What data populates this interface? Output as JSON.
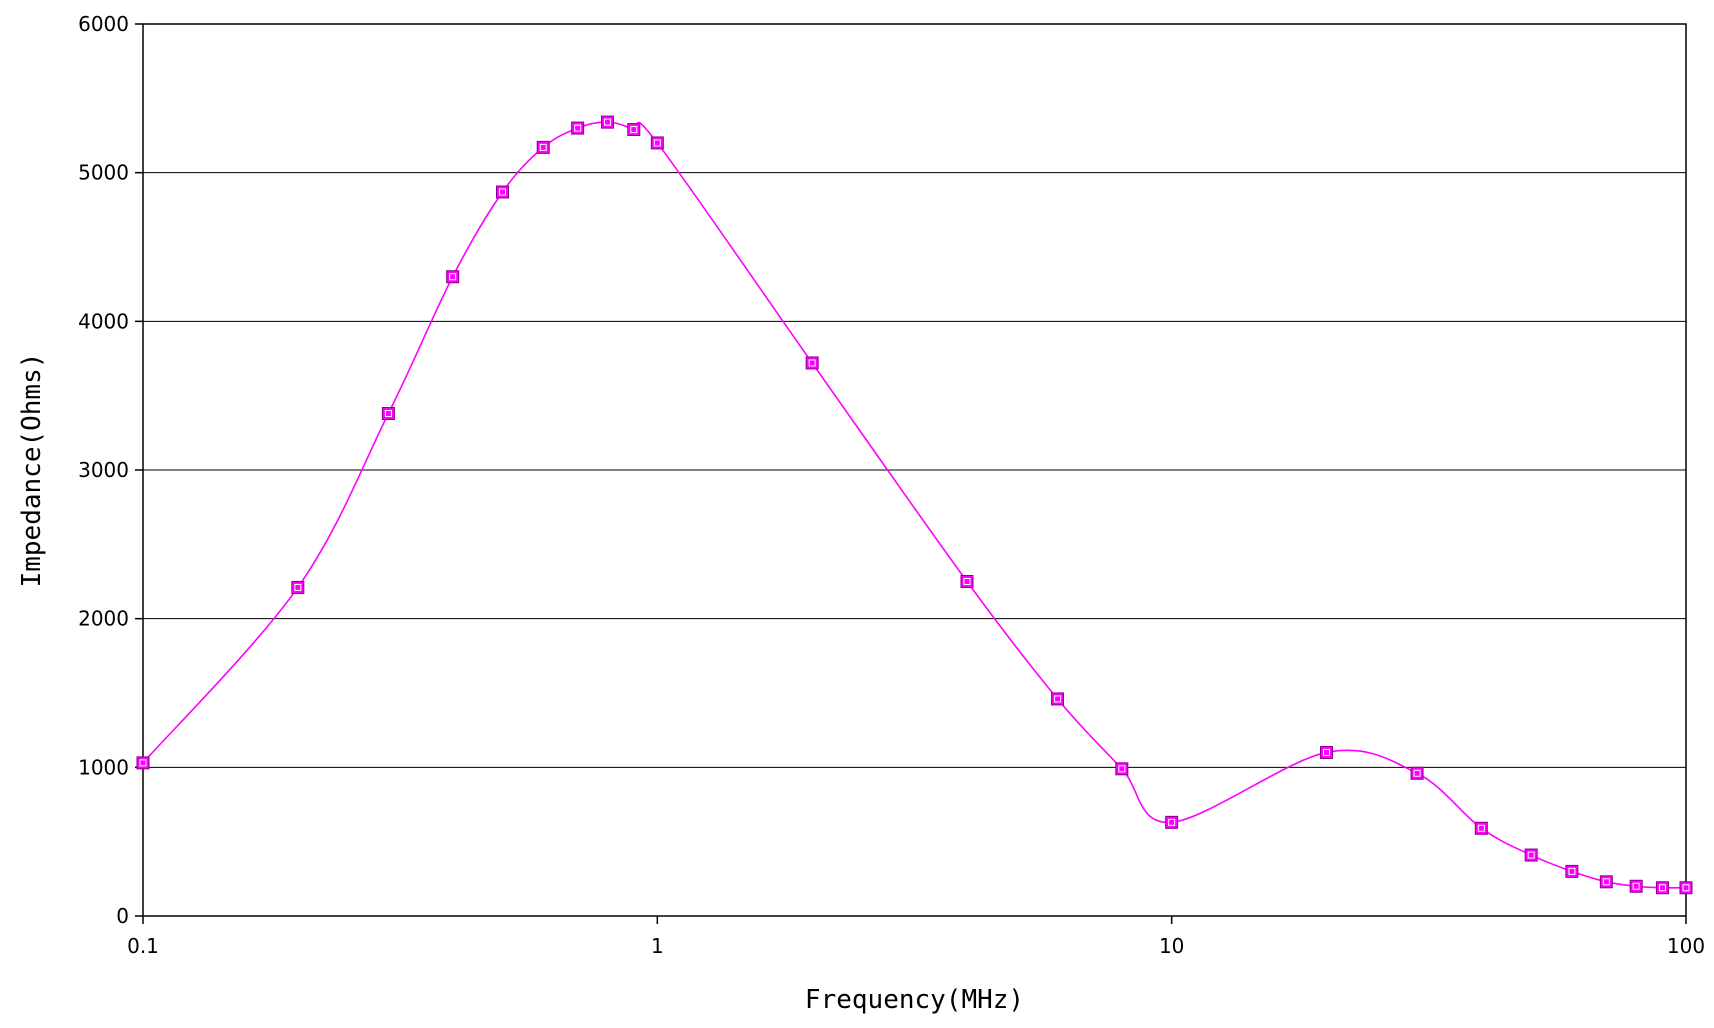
{
  "chart_data": {
    "type": "line",
    "title": "",
    "xlabel": "Frequency(MHz)",
    "ylabel": "Impedance(Ohms)",
    "x_scale": "log",
    "xlim": [
      0.1,
      100
    ],
    "ylim": [
      0,
      6000
    ],
    "x_ticks": [
      0.1,
      1,
      10,
      100
    ],
    "x_tick_labels": [
      "0.1",
      "1",
      "10",
      "100"
    ],
    "y_ticks": [
      0,
      1000,
      2000,
      3000,
      4000,
      5000,
      6000
    ],
    "y_tick_labels": [
      "0",
      "1000",
      "2000",
      "3000",
      "4000",
      "5000",
      "6000"
    ],
    "grid": "horizontal",
    "legend": "none",
    "series": [
      {
        "color": "#ff00ff",
        "marker": "square",
        "x": [
          0.1,
          0.2,
          0.3,
          0.4,
          0.5,
          0.6,
          0.7,
          0.8,
          0.9,
          1,
          2,
          4,
          6,
          8,
          10,
          20,
          30,
          40,
          50,
          60,
          70,
          80,
          90,
          100
        ],
        "y": [
          1030,
          2210,
          3380,
          4300,
          4870,
          5170,
          5300,
          5340,
          5290,
          5200,
          3720,
          2250,
          1460,
          990,
          630,
          1100,
          960,
          590,
          410,
          300,
          230,
          200,
          190,
          190
        ]
      }
    ]
  }
}
